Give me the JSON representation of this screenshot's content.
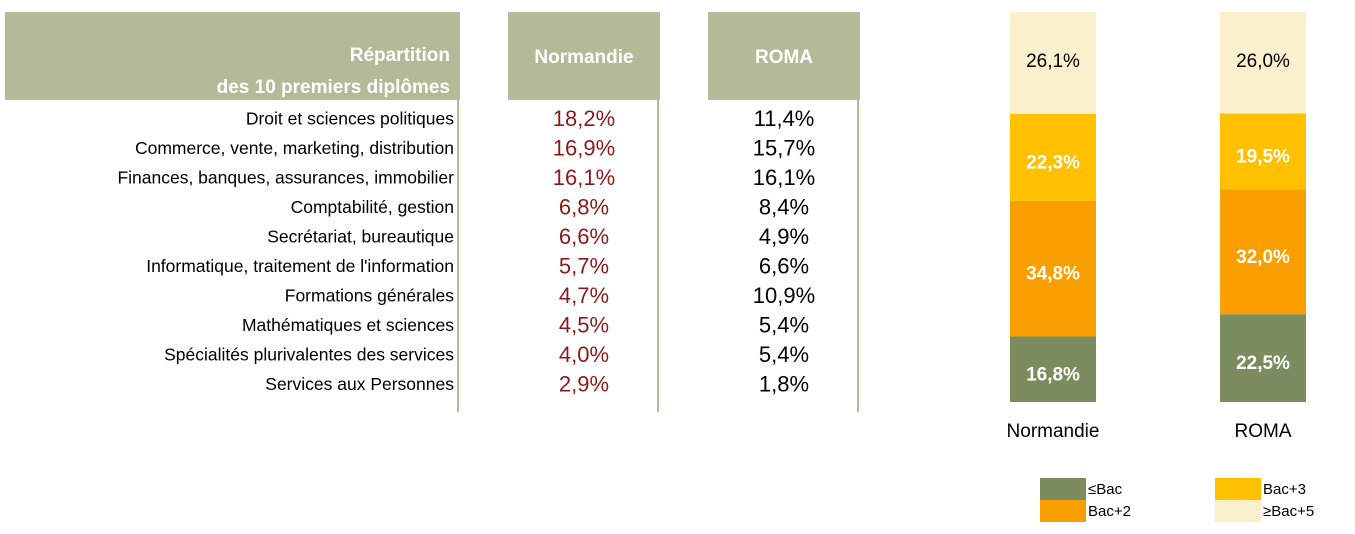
{
  "table": {
    "corner": [
      "Répartition",
      "des 10 premiers diplômes"
    ],
    "columns": [
      "Normandie",
      "ROMA"
    ],
    "rows": [
      [
        "Droit et sciences politiques",
        "18,2%",
        "11,4%"
      ],
      [
        "Commerce, vente, marketing, distribution",
        "16,9%",
        "15,7%"
      ],
      [
        "Finances, banques, assurances, immobilier",
        "16,1%",
        "16,1%"
      ],
      [
        "Comptabilité, gestion",
        "6,8%",
        "8,4%"
      ],
      [
        "Secrétariat, bureautique",
        "6,6%",
        "4,9%"
      ],
      [
        "Informatique, traitement de l'information",
        "5,7%",
        "6,6%"
      ],
      [
        "Formations générales",
        "4,7%",
        "10,9%"
      ],
      [
        "Mathématiques et sciences",
        "4,5%",
        "5,4%"
      ],
      [
        "Spécialités plurivalentes des services",
        "4,0%",
        "5,4%"
      ],
      [
        "Services aux Personnes",
        "2,9%",
        "1,8%"
      ]
    ]
  },
  "chart_data": {
    "type": "stacked_bar",
    "categories": [
      "Normandie",
      "ROMA"
    ],
    "series": [
      {
        "name": "≤Bac",
        "color": "#7b8c5f",
        "label_color": "#ffffff",
        "values": [
          16.8,
          22.5
        ],
        "value_labels": [
          "16,8%",
          "22,5%"
        ]
      },
      {
        "name": "Bac+2",
        "color": "#f9a000",
        "label_color": "#ffffff",
        "values": [
          34.8,
          32.0
        ],
        "value_labels": [
          "34,8%",
          "32,0%"
        ]
      },
      {
        "name": "Bac+3",
        "color": "#ffc000",
        "label_color": "#ffffff",
        "values": [
          22.3,
          19.5
        ],
        "value_labels": [
          "22,3%",
          "19,5%"
        ]
      },
      {
        "name": "≥Bac+5",
        "color": "#faf0cd",
        "label_color": "#000000",
        "values": [
          26.1,
          26.0
        ],
        "value_labels": [
          "26,1%",
          "26,0%"
        ]
      }
    ]
  }
}
